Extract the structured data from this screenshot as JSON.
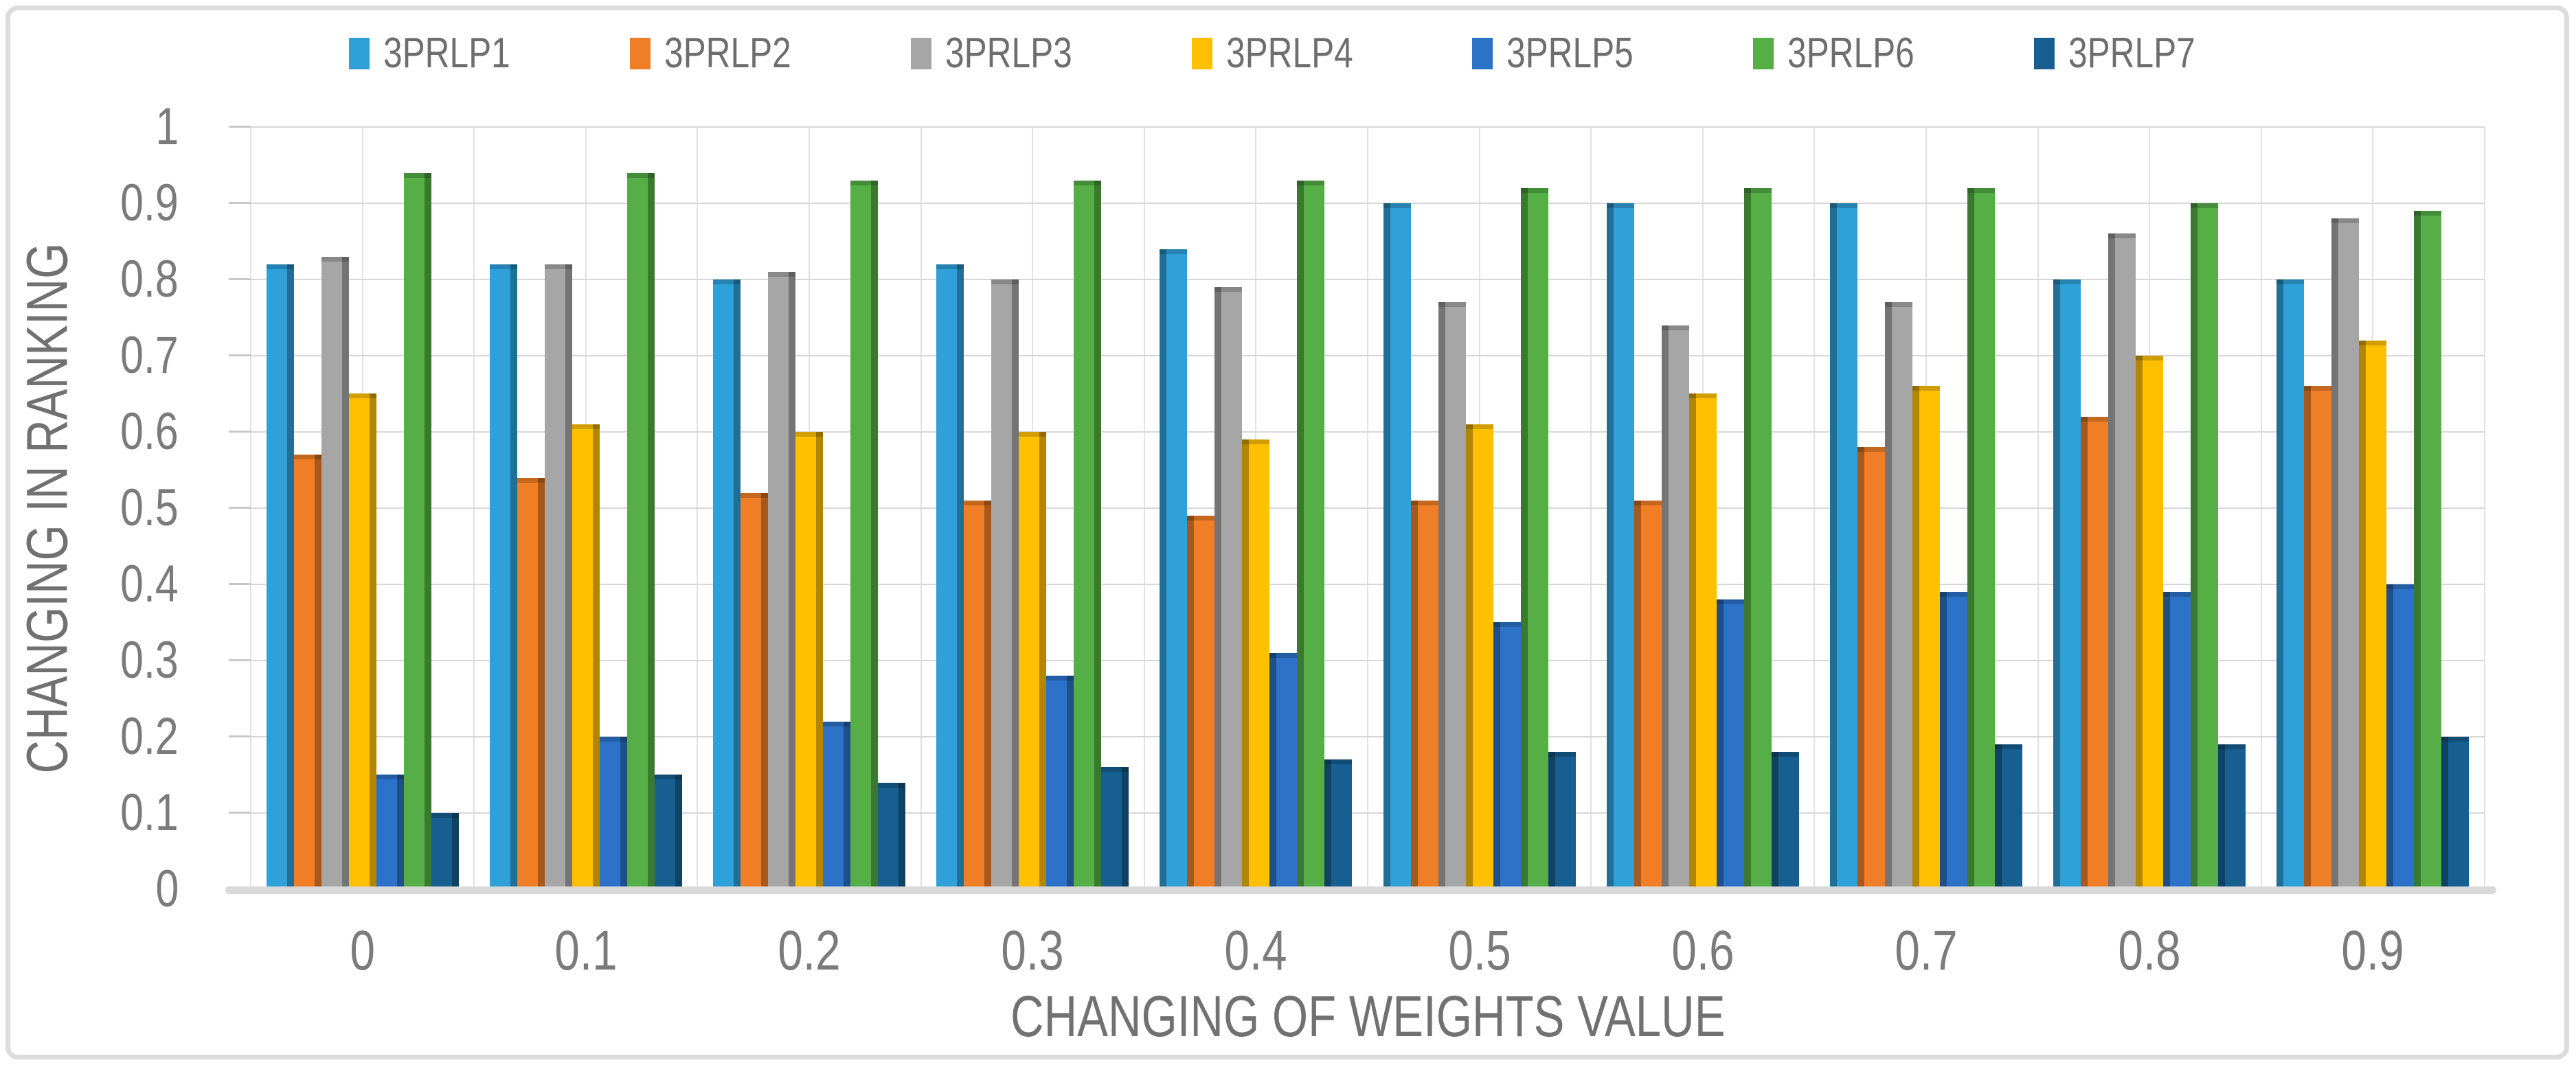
{
  "figure": {
    "border_color": "#dcdcdc",
    "background_color": "#ffffff",
    "axis_text_color": "#7b7b7b",
    "title_text_color": "#717171",
    "gridline_color": "#d7d7d7"
  },
  "chart_data": {
    "type": "bar",
    "title": "",
    "xlabel": "CHANGING OF WEIGHTS VALUE",
    "ylabel": "CHANGING IN RANKING",
    "categories": [
      "0",
      "0.1",
      "0.2",
      "0.3",
      "0.4",
      "0.5",
      "0.6",
      "0.7",
      "0.8",
      "0.9"
    ],
    "y_ticks": [
      "0",
      "0.1",
      "0.2",
      "0.3",
      "0.4",
      "0.5",
      "0.6",
      "0.7",
      "0.8",
      "0.9",
      "1"
    ],
    "ylim": [
      0,
      1
    ],
    "grid": true,
    "legend_position": "top",
    "series": [
      {
        "name": "3PRLP1",
        "color": "#2FA0D8",
        "values": [
          0.82,
          0.82,
          0.8,
          0.82,
          0.84,
          0.9,
          0.9,
          0.9,
          0.8,
          0.8
        ]
      },
      {
        "name": "3PRLP2",
        "color": "#F07E26",
        "values": [
          0.57,
          0.54,
          0.52,
          0.51,
          0.49,
          0.51,
          0.51,
          0.58,
          0.62,
          0.66
        ]
      },
      {
        "name": "3PRLP3",
        "color": "#A6A6A6",
        "values": [
          0.83,
          0.82,
          0.81,
          0.8,
          0.79,
          0.77,
          0.74,
          0.77,
          0.86,
          0.88
        ]
      },
      {
        "name": "3PRLP4",
        "color": "#FFC000",
        "values": [
          0.65,
          0.61,
          0.6,
          0.6,
          0.59,
          0.61,
          0.65,
          0.66,
          0.7,
          0.72
        ]
      },
      {
        "name": "3PRLP5",
        "color": "#2B72C8",
        "values": [
          0.15,
          0.2,
          0.22,
          0.28,
          0.31,
          0.35,
          0.38,
          0.39,
          0.39,
          0.4
        ]
      },
      {
        "name": "3PRLP6",
        "color": "#55AE46",
        "values": [
          0.94,
          0.94,
          0.93,
          0.93,
          0.93,
          0.92,
          0.92,
          0.92,
          0.9,
          0.89
        ]
      },
      {
        "name": "3PRLP7",
        "color": "#175F90",
        "values": [
          0.1,
          0.15,
          0.14,
          0.16,
          0.17,
          0.18,
          0.18,
          0.19,
          0.19,
          0.2
        ]
      }
    ]
  }
}
